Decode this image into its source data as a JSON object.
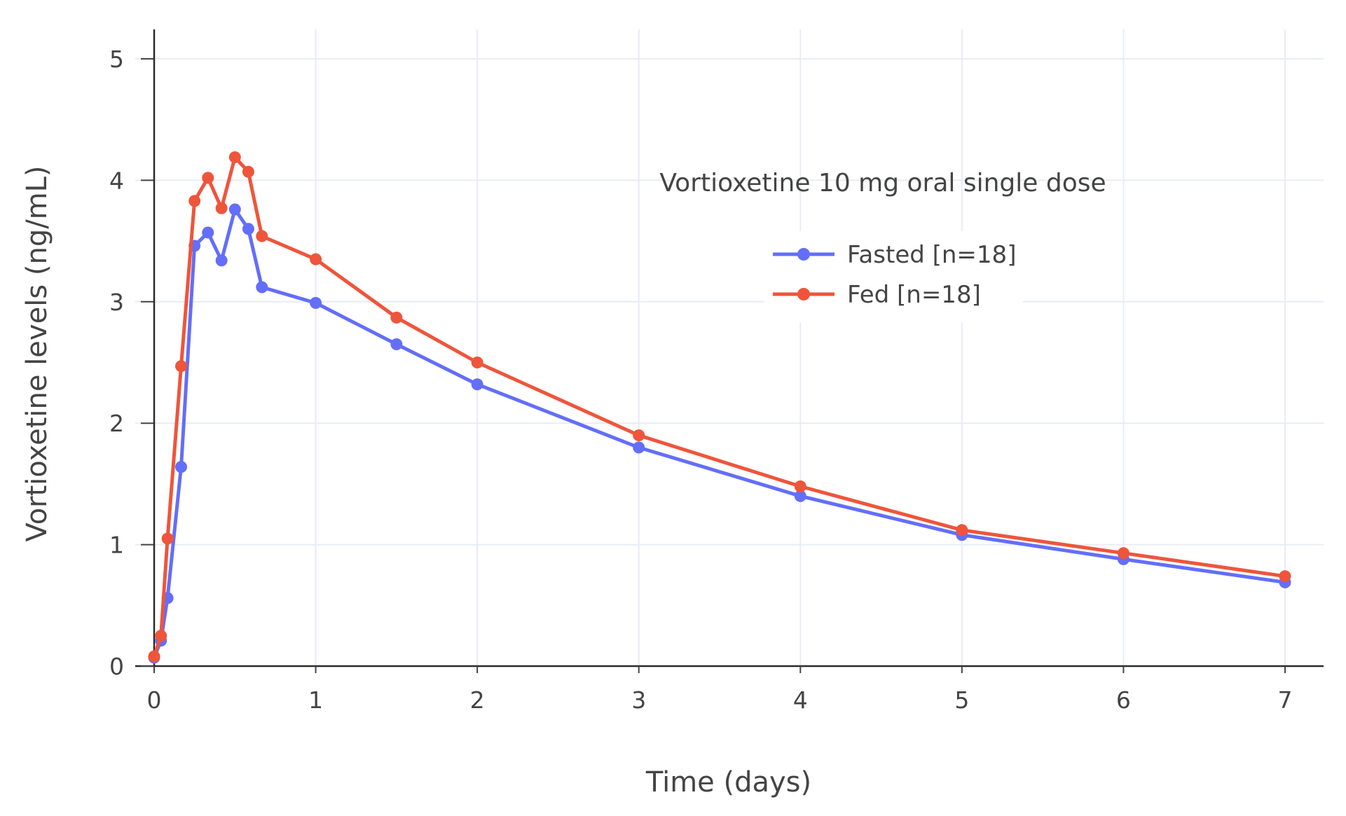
{
  "colors": {
    "fasted": "#636efa",
    "fed": "#ef553b"
  },
  "chart_data": {
    "type": "line",
    "title": "",
    "annotation": "Vortioxetine 10 mg oral single dose",
    "xlabel": "Time (days)",
    "ylabel": "Vortioxetine levels (ng/mL)",
    "xlim": [
      -0.07,
      7.25
    ],
    "ylim": [
      0,
      5.25
    ],
    "x_ticks": [
      0,
      1,
      2,
      3,
      4,
      5,
      6,
      7
    ],
    "y_ticks": [
      0,
      1,
      2,
      3,
      4,
      5
    ],
    "x_tick_labels": [
      "0",
      "1",
      "2",
      "3",
      "4",
      "5",
      "6",
      "7"
    ],
    "y_tick_labels": [
      "0",
      "1",
      "2",
      "3",
      "4",
      "5"
    ],
    "legend_position": "top-right",
    "series": [
      {
        "name": "Fasted [n=18]",
        "color_key": "fasted",
        "x": [
          0,
          0.042,
          0.083,
          0.167,
          0.25,
          0.333,
          0.417,
          0.5,
          0.583,
          0.667,
          1,
          1.5,
          2,
          3,
          4,
          5,
          6,
          7
        ],
        "y": [
          0.07,
          0.21,
          0.56,
          1.64,
          3.46,
          3.57,
          3.34,
          3.76,
          3.6,
          3.12,
          2.99,
          2.65,
          2.32,
          1.8,
          1.4,
          1.08,
          0.88,
          0.69
        ]
      },
      {
        "name": "Fed [n=18]",
        "color_key": "fed",
        "x": [
          0,
          0.042,
          0.083,
          0.167,
          0.25,
          0.333,
          0.417,
          0.5,
          0.583,
          0.667,
          1,
          1.5,
          2,
          3,
          4,
          5,
          6,
          7
        ],
        "y": [
          0.08,
          0.25,
          1.05,
          2.47,
          3.83,
          4.02,
          3.77,
          4.19,
          4.07,
          3.54,
          3.35,
          2.87,
          2.5,
          1.9,
          1.48,
          1.12,
          0.93,
          0.74
        ]
      }
    ]
  }
}
